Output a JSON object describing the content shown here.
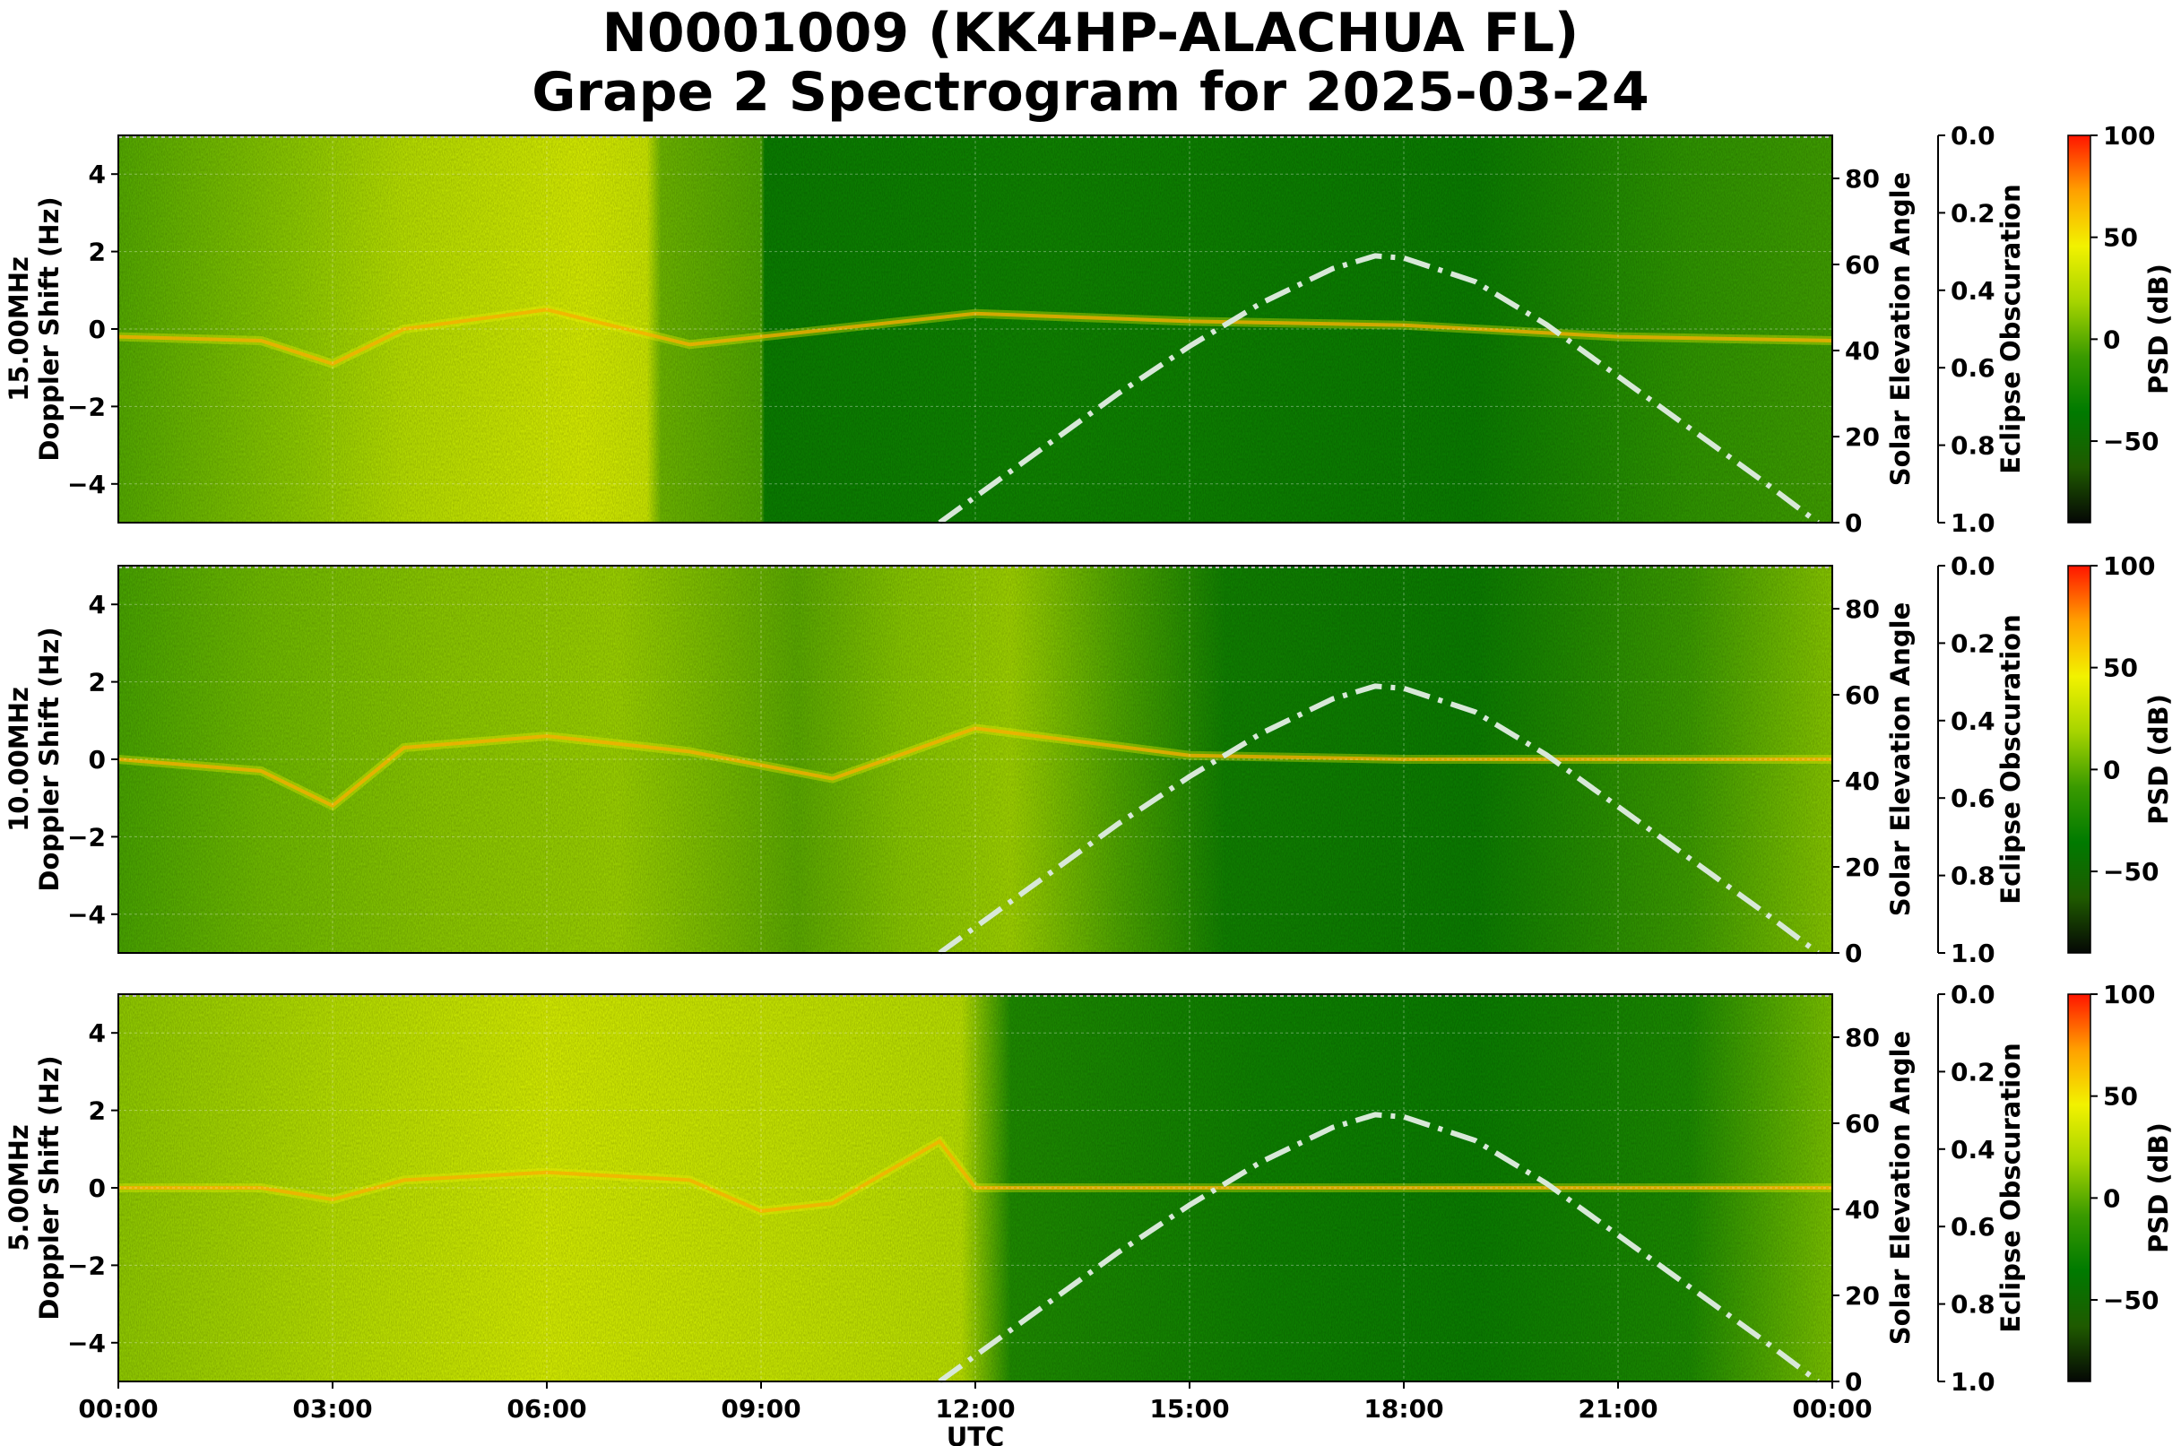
{
  "title_line1": "N0001009 (KK4HP-ALACHUA FL)",
  "title_line2": "Grape 2 Spectrogram for 2025-03-24",
  "chart_data": {
    "type": "heatmap",
    "xlabel": "UTC",
    "x_ticks": [
      "00:00",
      "03:00",
      "06:00",
      "09:00",
      "12:00",
      "15:00",
      "18:00",
      "21:00",
      "00:00"
    ],
    "x_range_hours": [
      0,
      24
    ],
    "ylabel_left": "Doppler Shift (Hz)",
    "ylim_left": [
      -5,
      5
    ],
    "y_ticks_left": [
      "4",
      "2",
      "0",
      "−2",
      "−4"
    ],
    "ylabel_right": "Solar Elevation Angle",
    "ylim_right": [
      0,
      90
    ],
    "y_ticks_right": [
      "80",
      "60",
      "40",
      "20",
      "0"
    ],
    "eclipse_label": "Eclipse Obscuration",
    "eclipse_ticks": [
      "0.0",
      "0.2",
      "0.4",
      "0.6",
      "0.8",
      "1.0"
    ],
    "colorbar_label": "PSD (dB)",
    "colorbar_ticks": [
      "100",
      "50",
      "0",
      "−50"
    ],
    "colorbar_range": [
      -90,
      100
    ],
    "colormap": [
      "#050805",
      "#1f5a00",
      "#007a00",
      "#3a9a00",
      "#a6d400",
      "#f2f200",
      "#ffa000",
      "#ff1500"
    ],
    "grid": true,
    "solar_elevation": {
      "name": "Solar Elevation Angle",
      "line_style": "dash-dot",
      "color": "#d8e8d8",
      "hours": [
        11.5,
        12,
        13,
        14,
        15,
        16,
        17,
        17.6,
        18,
        19,
        20,
        21,
        22,
        23,
        23.8
      ],
      "degrees": [
        0,
        6,
        18,
        30,
        41,
        51,
        59,
        62,
        61.5,
        56,
        46,
        34,
        22,
        10,
        0
      ]
    },
    "panels": [
      {
        "frequency_label": "15.00MHz",
        "dominant_trace_hz": {
          "hours": [
            0,
            2,
            3,
            4,
            6,
            8,
            12,
            15,
            18,
            21,
            24
          ],
          "values": [
            -0.2,
            -0.3,
            -0.9,
            0,
            0.5,
            -0.4,
            0.4,
            0.2,
            0.1,
            -0.2,
            -0.3
          ]
        }
      },
      {
        "frequency_label": "10.00MHz",
        "dominant_trace_hz": {
          "hours": [
            0,
            2,
            3,
            4,
            6,
            8,
            10,
            12,
            15,
            18,
            21,
            24
          ],
          "values": [
            0,
            -0.3,
            -1.2,
            0.3,
            0.6,
            0.2,
            -0.5,
            0.8,
            0.1,
            0,
            0,
            0
          ]
        }
      },
      {
        "frequency_label": "5.00MHz",
        "dominant_trace_hz": {
          "hours": [
            0,
            2,
            3,
            4,
            6,
            8,
            9,
            10,
            11.5,
            12,
            18,
            24
          ],
          "values": [
            0,
            0,
            -0.3,
            0.2,
            0.4,
            0.2,
            -0.6,
            -0.4,
            1.2,
            0,
            0,
            0
          ]
        }
      }
    ]
  }
}
